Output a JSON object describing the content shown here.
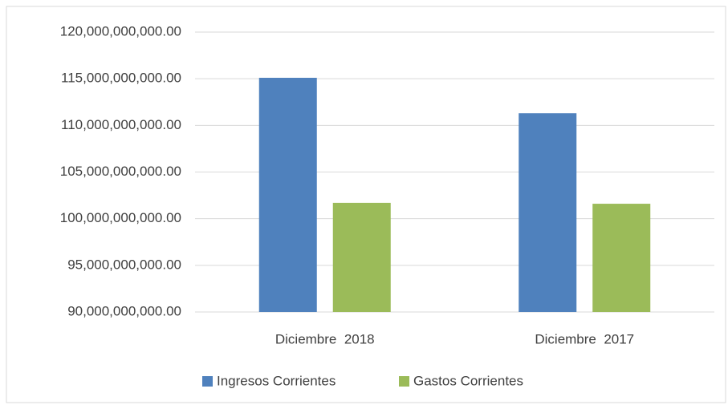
{
  "chart_data": {
    "type": "bar",
    "categories": [
      "Diciembre  2018",
      "Diciembre  2017"
    ],
    "series": [
      {
        "name": "Ingresos Corrientes",
        "color": "#4f81bd",
        "values": [
          115100000000,
          111300000000
        ]
      },
      {
        "name": "Gastos Corrientes",
        "color": "#9bbb59",
        "values": [
          101700000000,
          101600000000
        ]
      }
    ],
    "ylim": [
      90000000000,
      120000000000
    ],
    "yticks": [
      {
        "value": 90000000000,
        "label": "90,000,000,000.00"
      },
      {
        "value": 95000000000,
        "label": "95,000,000,000.00"
      },
      {
        "value": 100000000000,
        "label": "100,000,000,000.00"
      },
      {
        "value": 105000000000,
        "label": "105,000,000,000.00"
      },
      {
        "value": 110000000000,
        "label": "110,000,000,000.00"
      },
      {
        "value": 115000000000,
        "label": "115,000,000,000.00"
      },
      {
        "value": 120000000000,
        "label": "120,000,000,000.00"
      }
    ],
    "grid": true,
    "legend": "bottom"
  }
}
